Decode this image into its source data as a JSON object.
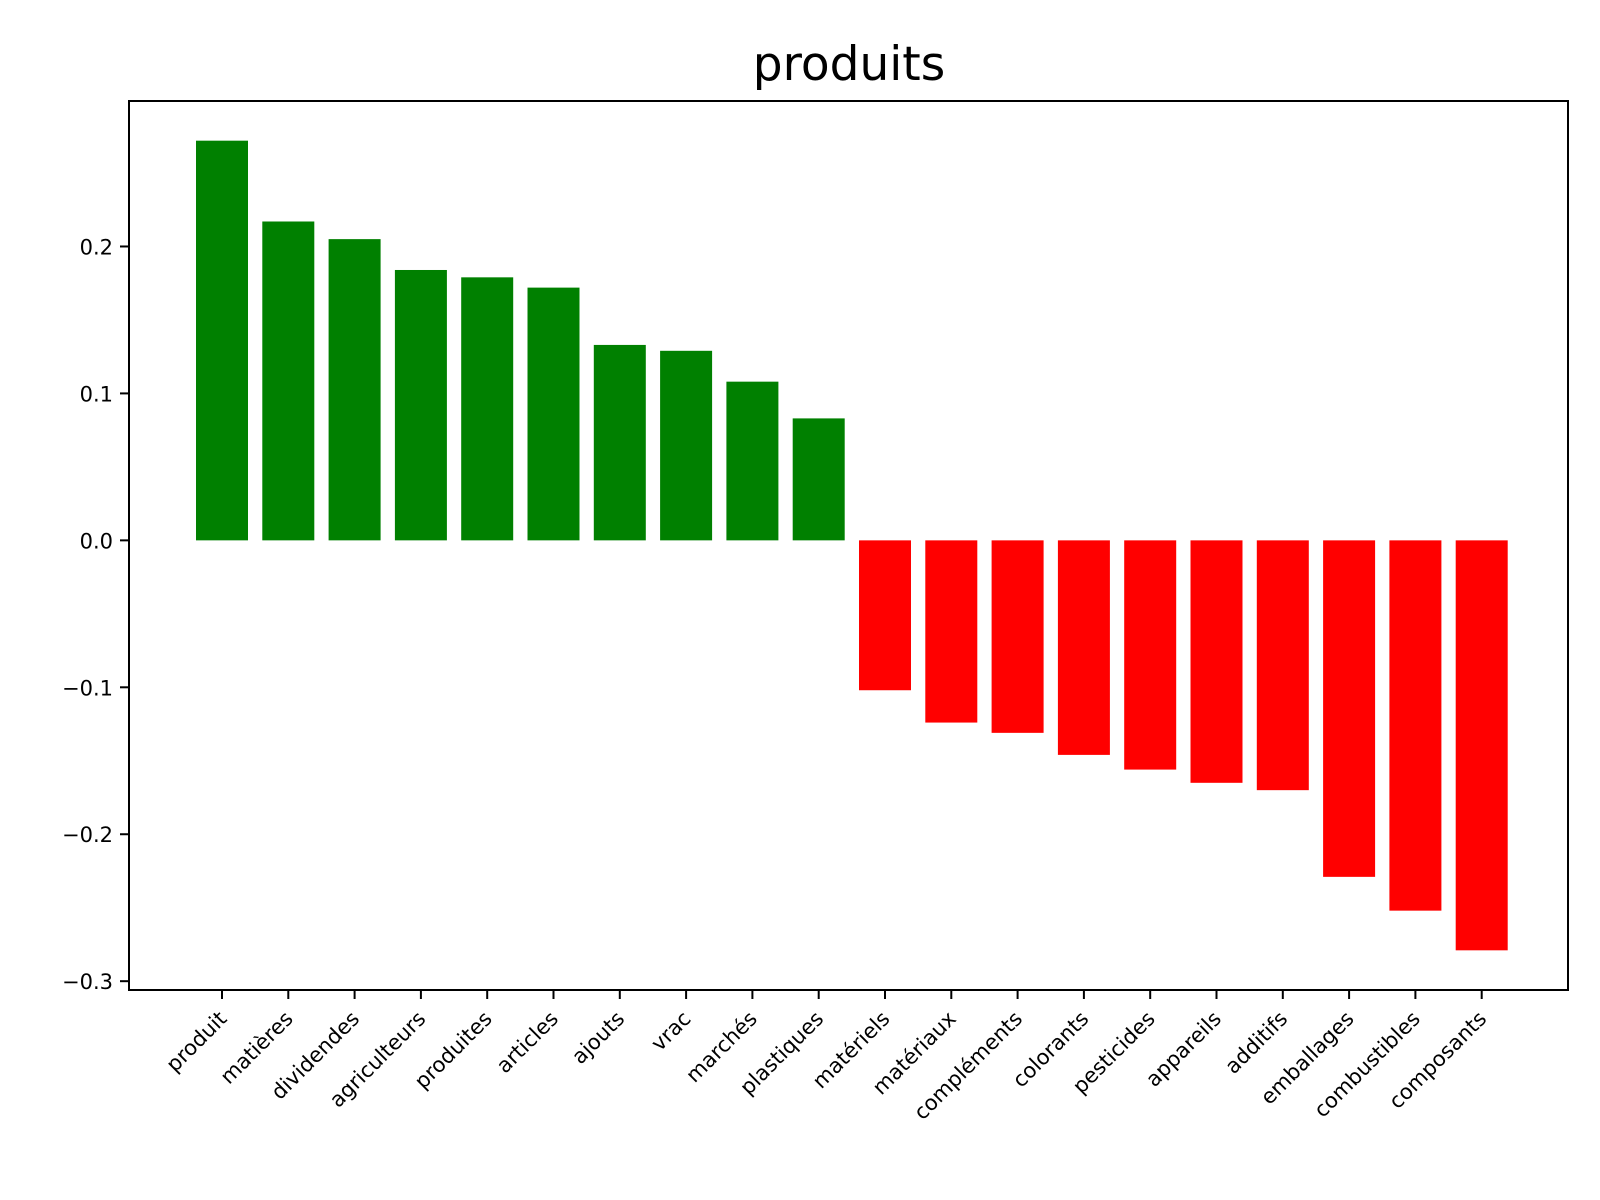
{
  "chart_data": {
    "type": "bar",
    "title": "produits",
    "xlabel": "",
    "ylabel": "",
    "categories": [
      "produit",
      "matières",
      "dividendes",
      "agriculteurs",
      "produites",
      "articles",
      "ajouts",
      "vrac",
      "marchés",
      "plastiques",
      "matériels",
      "matériaux",
      "compléments",
      "colorants",
      "pesticides",
      "appareils",
      "additifs",
      "emballages",
      "combustibles",
      "composants"
    ],
    "values": [
      0.272,
      0.217,
      0.205,
      0.184,
      0.179,
      0.172,
      0.133,
      0.129,
      0.108,
      0.083,
      -0.102,
      -0.124,
      -0.131,
      -0.146,
      -0.156,
      -0.165,
      -0.17,
      -0.229,
      -0.252,
      -0.279
    ],
    "ylim": [
      -0.306,
      0.299
    ],
    "yticks": [
      -0.3,
      -0.2,
      -0.1,
      0.0,
      0.1,
      0.2
    ],
    "ytick_labels": [
      "−0.3",
      "−0.2",
      "−0.1",
      "0.0",
      "0.1",
      "0.2"
    ],
    "colors": {
      "positive": "#008000",
      "negative": "#ff0000"
    },
    "grid": false,
    "legend": "none"
  }
}
